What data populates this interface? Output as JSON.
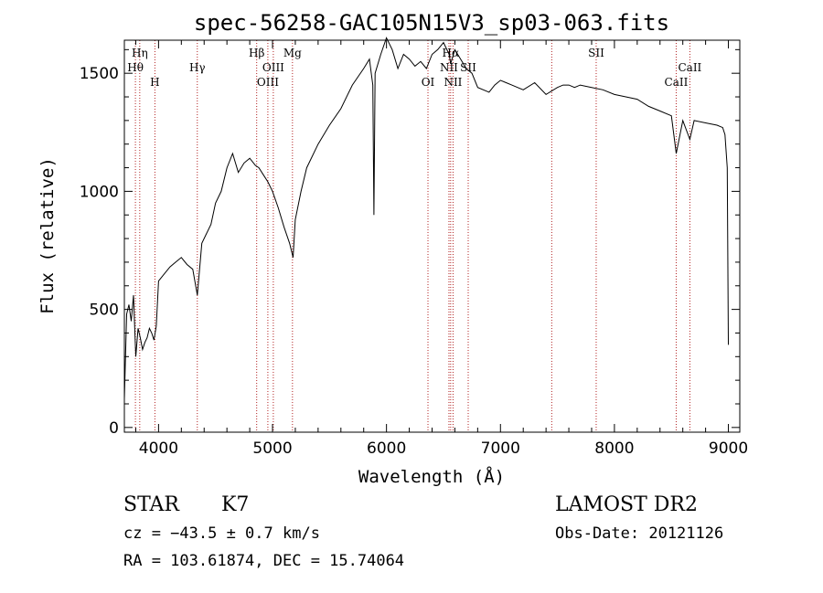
{
  "chart_data": {
    "type": "line",
    "title": "spec-56258-GAC105N15V3_sp03-063.fits",
    "xlabel": "Wavelength (Å)",
    "ylabel": "Flux (relative)",
    "xlim": [
      3700,
      9100
    ],
    "ylim": [
      -20,
      1640
    ],
    "x_ticks": [
      4000,
      5000,
      6000,
      7000,
      8000,
      9000
    ],
    "x_tick_labels": [
      "4000",
      "5000",
      "6000",
      "7000",
      "8000",
      "9000"
    ],
    "y_ticks": [
      0,
      500,
      1000,
      1500
    ],
    "y_tick_labels": [
      "0",
      "500",
      "1000",
      "1500"
    ],
    "grid": false,
    "legend": "none",
    "line_color": "#000000",
    "marker_color": "#b22222",
    "series": [
      {
        "x": [
          3700,
          3720,
          3740,
          3760,
          3780,
          3800,
          3820,
          3840,
          3860,
          3880,
          3900,
          3920,
          3940,
          3960,
          3980,
          4000,
          4050,
          4100,
          4150,
          4200,
          4250,
          4300,
          4340,
          4380,
          4420,
          4460,
          4500,
          4550,
          4600,
          4650,
          4700,
          4750,
          4800,
          4850,
          4880,
          4920,
          4960,
          5000,
          5050,
          5100,
          5150,
          5180,
          5200,
          5250,
          5300,
          5400,
          5500,
          5600,
          5700,
          5800,
          5850,
          5880,
          5890,
          5900,
          5950,
          6000,
          6050,
          6100,
          6150,
          6200,
          6250,
          6300,
          6350,
          6400,
          6450,
          6500,
          6550,
          6563,
          6600,
          6650,
          6700,
          6750,
          6800,
          6900,
          6950,
          7000,
          7050,
          7100,
          7200,
          7300,
          7400,
          7500,
          7550,
          7600,
          7650,
          7700,
          7800,
          7900,
          8000,
          8100,
          8200,
          8300,
          8400,
          8500,
          8542,
          8600,
          8662,
          8700,
          8800,
          8900,
          8950,
          8970,
          8990,
          9000
        ],
        "y": [
          120,
          480,
          520,
          450,
          560,
          300,
          420,
          380,
          330,
          360,
          380,
          420,
          400,
          370,
          430,
          620,
          650,
          680,
          700,
          720,
          690,
          670,
          560,
          780,
          820,
          860,
          950,
          1000,
          1100,
          1160,
          1080,
          1120,
          1140,
          1110,
          1100,
          1070,
          1040,
          1000,
          930,
          850,
          780,
          720,
          880,
          1000,
          1100,
          1200,
          1280,
          1350,
          1450,
          1520,
          1560,
          1450,
          900,
          1500,
          1580,
          1650,
          1600,
          1520,
          1580,
          1560,
          1530,
          1550,
          1520,
          1580,
          1600,
          1630,
          1580,
          1540,
          1600,
          1560,
          1520,
          1500,
          1440,
          1420,
          1450,
          1470,
          1460,
          1450,
          1430,
          1460,
          1410,
          1440,
          1450,
          1450,
          1440,
          1450,
          1440,
          1430,
          1410,
          1400,
          1390,
          1360,
          1340,
          1320,
          1160,
          1300,
          1220,
          1300,
          1290,
          1280,
          1270,
          1240,
          1100,
          350
        ]
      }
    ],
    "line_markers": [
      {
        "label": "Hη",
        "x": 3835,
        "row": 0
      },
      {
        "label": "Hθ",
        "x": 3797,
        "row": 1
      },
      {
        "label": "H",
        "x": 3968,
        "row": 2
      },
      {
        "label": "Hγ",
        "x": 4340,
        "row": 1
      },
      {
        "label": "Hβ",
        "x": 4861,
        "row": 0
      },
      {
        "label": "OIII",
        "x": 5007,
        "row": 1
      },
      {
        "label": "OIII",
        "x": 4959,
        "row": 2
      },
      {
        "label": "Mg",
        "x": 5175,
        "row": 0
      },
      {
        "label": "OI",
        "x": 6364,
        "row": 2
      },
      {
        "label": "Hα",
        "x": 6563,
        "row": 0
      },
      {
        "label": "NII",
        "x": 6548,
        "row": 1
      },
      {
        "label": "NII",
        "x": 6584,
        "row": 2
      },
      {
        "label": "SII",
        "x": 6717,
        "row": 1
      },
      {
        "label": "",
        "x": 7450,
        "row": 2
      },
      {
        "label": "SII",
        "x": 7840,
        "row": 0
      },
      {
        "label": "CaII",
        "x": 8542,
        "row": 2
      },
      {
        "label": "CaII",
        "x": 8662,
        "row": 1
      }
    ]
  },
  "footer": {
    "object_class": "STAR",
    "subclass": "K7",
    "redshift": "cz = −43.5 ± 0.7 km/s",
    "coords": "RA = 103.61874, DEC =  15.74064",
    "survey": "LAMOST DR2",
    "obs_date": "Obs-Date: 20121126"
  }
}
